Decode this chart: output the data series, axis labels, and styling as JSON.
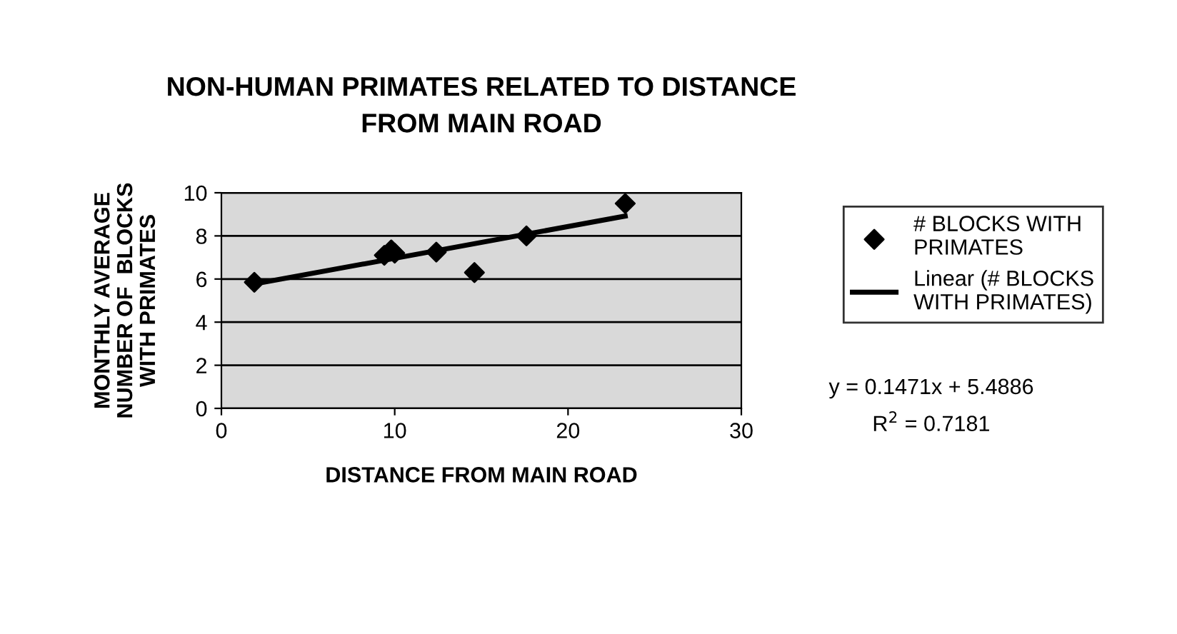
{
  "chart_data": {
    "type": "scatter",
    "title": "NON-HUMAN PRIMATES RELATED TO DISTANCE\nFROM MAIN ROAD",
    "xlabel": "DISTANCE FROM MAIN ROAD",
    "ylabel": "MONTHLY AVERAGE\nNUMBER OF  BLOCKS\nWITH PRIMATES",
    "series": [
      {
        "name": "# BLOCKS WITH\nPRIMATES",
        "color": "#000000",
        "marker": "diamond",
        "x": [
          1.9,
          9.4,
          9.8,
          10.0,
          12.4,
          14.6,
          17.6,
          23.3
        ],
        "values": [
          5.85,
          7.1,
          7.35,
          7.2,
          7.25,
          6.3,
          8.0,
          9.5
        ]
      },
      {
        "name": "Linear (# BLOCKS\nWITH PRIMATES)",
        "color": "#000000",
        "type": "line",
        "marker": "none",
        "x": [
          1.9,
          23.3
        ],
        "values": [
          5.77,
          8.92
        ]
      }
    ],
    "xlim": [
      0,
      30
    ],
    "xticks": [
      0,
      10,
      20,
      30
    ],
    "ylim": [
      0,
      10
    ],
    "yticks": [
      0,
      2,
      4,
      6,
      8,
      10
    ],
    "grid": "y",
    "legend": "right",
    "annotations": [
      "y = 0.1471x + 5.4886",
      "R$^{2}$ = 0.7181"
    ]
  }
}
